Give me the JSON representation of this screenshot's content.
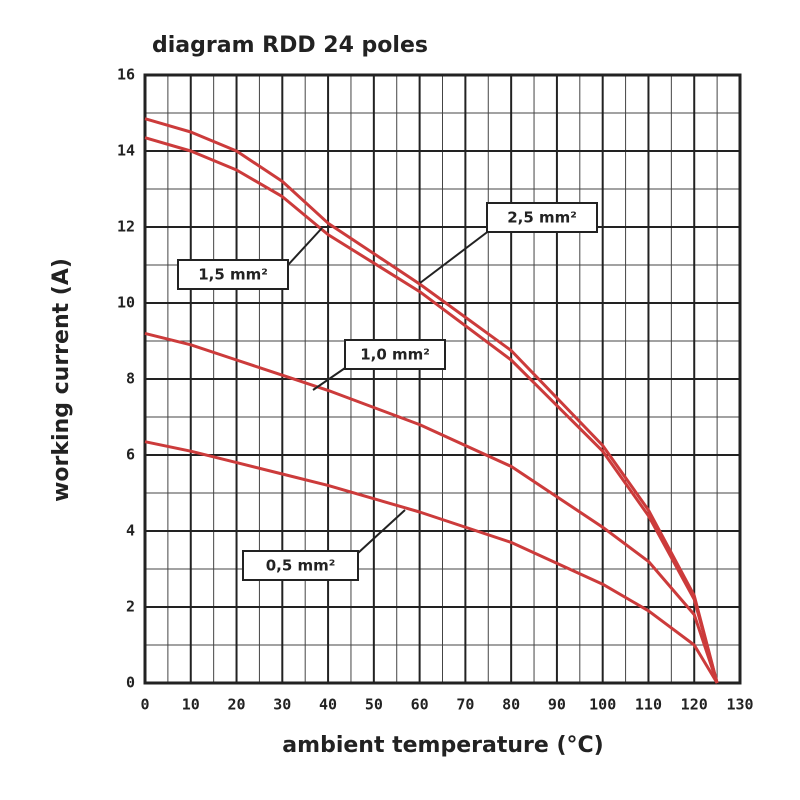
{
  "chart_data": {
    "type": "line",
    "title": "diagram RDD 24 poles",
    "x_label": "ambient temperature (°C)",
    "y_label": "working current (A)",
    "x": [
      0,
      10,
      20,
      30,
      40,
      60,
      80,
      100,
      110,
      120,
      125
    ],
    "series": [
      {
        "name": "2,5 mm²",
        "color": "#cc3b3b",
        "values": [
          14.85,
          14.5,
          14.0,
          13.2,
          12.1,
          10.5,
          8.75,
          6.25,
          4.55,
          2.3,
          0
        ]
      },
      {
        "name": "1,5 mm²",
        "color": "#cc3b3b",
        "values": [
          14.35,
          14.0,
          13.5,
          12.8,
          11.8,
          10.3,
          8.5,
          6.1,
          4.4,
          2.2,
          0
        ]
      },
      {
        "name": "1,0 mm²",
        "color": "#cc3b3b",
        "values": [
          9.2,
          8.9,
          8.5,
          8.1,
          7.7,
          6.8,
          5.7,
          4.1,
          3.2,
          1.8,
          0
        ]
      },
      {
        "name": "0,5 mm²",
        "color": "#cc3b3b",
        "values": [
          6.35,
          6.1,
          5.8,
          5.5,
          5.2,
          4.5,
          3.7,
          2.6,
          1.9,
          1.0,
          0
        ]
      }
    ],
    "xlim": [
      0,
      130
    ],
    "xticks": [
      0,
      10,
      20,
      30,
      40,
      50,
      60,
      70,
      80,
      90,
      100,
      110,
      120,
      130
    ],
    "ylim": [
      0,
      16
    ],
    "yticks": [
      0,
      2,
      4,
      6,
      8,
      10,
      12,
      14,
      16
    ],
    "grid": true
  }
}
